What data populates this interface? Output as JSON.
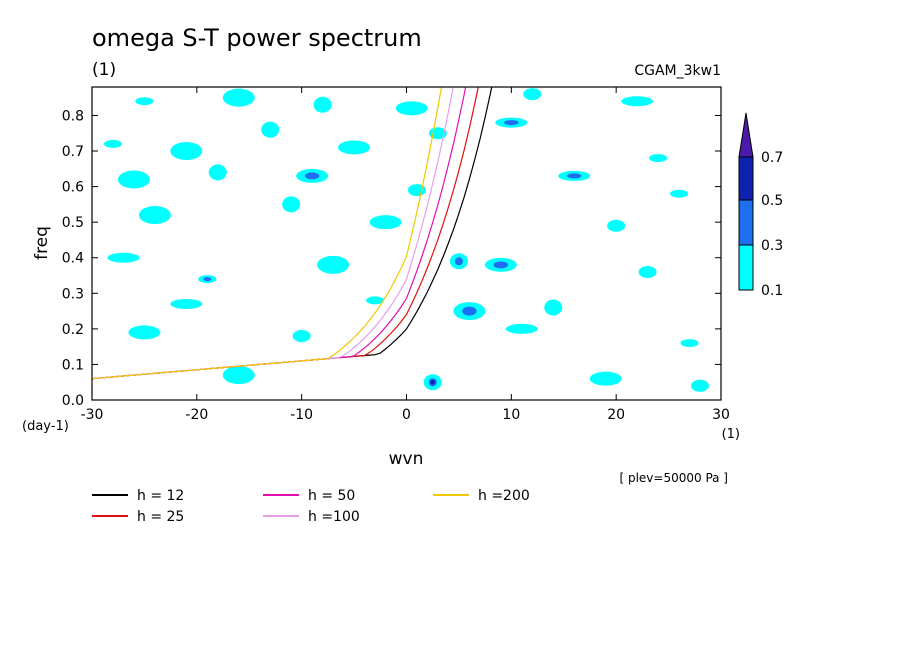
{
  "chart_data": {
    "type": "contour",
    "title": "omega S-T power spectrum",
    "units_label": "(1)",
    "dataset_label": "CGAM_3kw1",
    "xlabel": "wvn",
    "ylabel": "freq",
    "x_units": "(1)",
    "y_units": "(day-1)",
    "level_note": "[ plev=50000 Pa ]",
    "xlim": [
      -30,
      30
    ],
    "ylim": [
      0,
      0.88
    ],
    "x_ticks": [
      -30,
      -20,
      -10,
      0,
      10,
      20,
      30
    ],
    "y_ticks": [
      0.0,
      0.1,
      0.2,
      0.3,
      0.4,
      0.5,
      0.6,
      0.7,
      0.8
    ],
    "x_tick_labels": [
      "-30",
      "-20",
      "-10",
      "0",
      "10",
      "20",
      "30"
    ],
    "y_tick_labels": [
      "0.0",
      "0.1",
      "0.2",
      "0.3",
      "0.4",
      "0.5",
      "0.6",
      "0.7",
      "0.8"
    ],
    "colorbar": {
      "levels": [
        "0.1",
        "0.3",
        "0.5",
        "0.7"
      ],
      "colors": [
        "#00ffff",
        "#1e6ff0",
        "#1020b0",
        "#4b1aa8"
      ]
    },
    "dispersion_curves": [
      {
        "name": "h = 12",
        "h": 12,
        "color": "#000000"
      },
      {
        "name": "h = 25",
        "h": 25,
        "color": "#e01010"
      },
      {
        "name": "h = 50",
        "h": 50,
        "color": "#e010b0"
      },
      {
        "name": "h =100",
        "h": 100,
        "color": "#e8a0e8"
      },
      {
        "name": "h =200",
        "h": 200,
        "color": "#f0c800"
      }
    ],
    "contour_patches": [
      {
        "x": -25,
        "y": 0.84,
        "level": 0
      },
      {
        "x": -16,
        "y": 0.85,
        "level": 0
      },
      {
        "x": -8,
        "y": 0.83,
        "level": 0
      },
      {
        "x": 0.5,
        "y": 0.82,
        "level": 0
      },
      {
        "x": 12,
        "y": 0.86,
        "level": 0
      },
      {
        "x": 22,
        "y": 0.84,
        "level": 0
      },
      {
        "x": -28,
        "y": 0.72,
        "level": 0
      },
      {
        "x": -21,
        "y": 0.7,
        "level": 0
      },
      {
        "x": -13,
        "y": 0.76,
        "level": 0
      },
      {
        "x": -5,
        "y": 0.71,
        "level": 0
      },
      {
        "x": 3,
        "y": 0.75,
        "level": 0
      },
      {
        "x": 10,
        "y": 0.78,
        "level": 1
      },
      {
        "x": 24,
        "y": 0.68,
        "level": 0
      },
      {
        "x": -26,
        "y": 0.62,
        "level": 0
      },
      {
        "x": -18,
        "y": 0.64,
        "level": 0
      },
      {
        "x": -9,
        "y": 0.63,
        "level": 1
      },
      {
        "x": 1,
        "y": 0.59,
        "level": 0
      },
      {
        "x": 16,
        "y": 0.63,
        "level": 1
      },
      {
        "x": 26,
        "y": 0.58,
        "level": 0
      },
      {
        "x": -24,
        "y": 0.52,
        "level": 0
      },
      {
        "x": -11,
        "y": 0.55,
        "level": 0
      },
      {
        "x": -2,
        "y": 0.5,
        "level": 0
      },
      {
        "x": 20,
        "y": 0.49,
        "level": 0
      },
      {
        "x": -27,
        "y": 0.4,
        "level": 0
      },
      {
        "x": -19,
        "y": 0.34,
        "level": 1
      },
      {
        "x": -7,
        "y": 0.38,
        "level": 0
      },
      {
        "x": 5,
        "y": 0.39,
        "level": 1
      },
      {
        "x": 9,
        "y": 0.38,
        "level": 1
      },
      {
        "x": 23,
        "y": 0.36,
        "level": 0
      },
      {
        "x": -21,
        "y": 0.27,
        "level": 0
      },
      {
        "x": -3,
        "y": 0.28,
        "level": 0
      },
      {
        "x": 6,
        "y": 0.25,
        "level": 1
      },
      {
        "x": 14,
        "y": 0.26,
        "level": 0
      },
      {
        "x": -25,
        "y": 0.19,
        "level": 0
      },
      {
        "x": -10,
        "y": 0.18,
        "level": 0
      },
      {
        "x": 11,
        "y": 0.2,
        "level": 0
      },
      {
        "x": 27,
        "y": 0.16,
        "level": 0
      },
      {
        "x": -16,
        "y": 0.07,
        "level": 0
      },
      {
        "x": 2.5,
        "y": 0.05,
        "level": 2
      },
      {
        "x": 19,
        "y": 0.06,
        "level": 0
      },
      {
        "x": 28,
        "y": 0.04,
        "level": 0
      }
    ]
  }
}
